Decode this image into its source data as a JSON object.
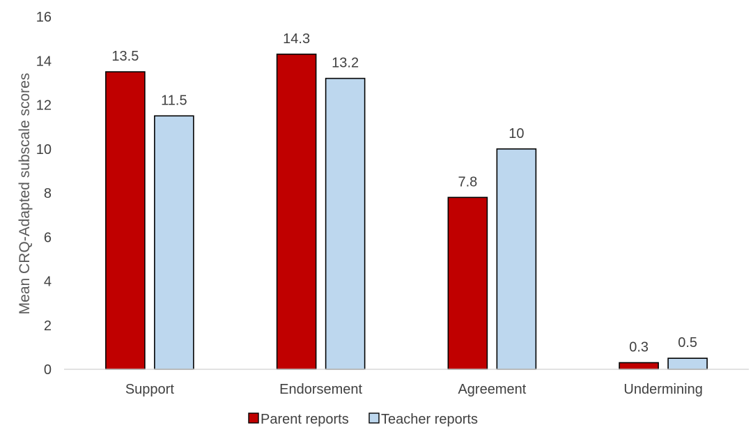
{
  "chart_data": {
    "type": "bar",
    "title": "",
    "xlabel": "",
    "ylabel": "Mean CRQ-Adapted subscale scores",
    "categories": [
      "Support",
      "Endorsement",
      "Agreement",
      "Undermining"
    ],
    "series": [
      {
        "name": "Parent reports",
        "values": [
          13.5,
          14.3,
          7.8,
          0.3
        ],
        "color": "#c00000",
        "labels": [
          "13.5",
          "14.3",
          "7.8",
          "0.3"
        ]
      },
      {
        "name": "Teacher reports",
        "values": [
          11.5,
          13.2,
          10,
          0.5
        ],
        "color": "#bdd7ee",
        "labels": [
          "11.5",
          "13.2",
          "10",
          "0.5"
        ]
      }
    ],
    "ylim": [
      0,
      16
    ],
    "yticks": [
      0,
      2,
      4,
      6,
      8,
      10,
      12,
      14,
      16
    ],
    "grid": false,
    "legend": "bottom",
    "axis_color": "#d9d9d9",
    "bar_outline": "#000000"
  }
}
